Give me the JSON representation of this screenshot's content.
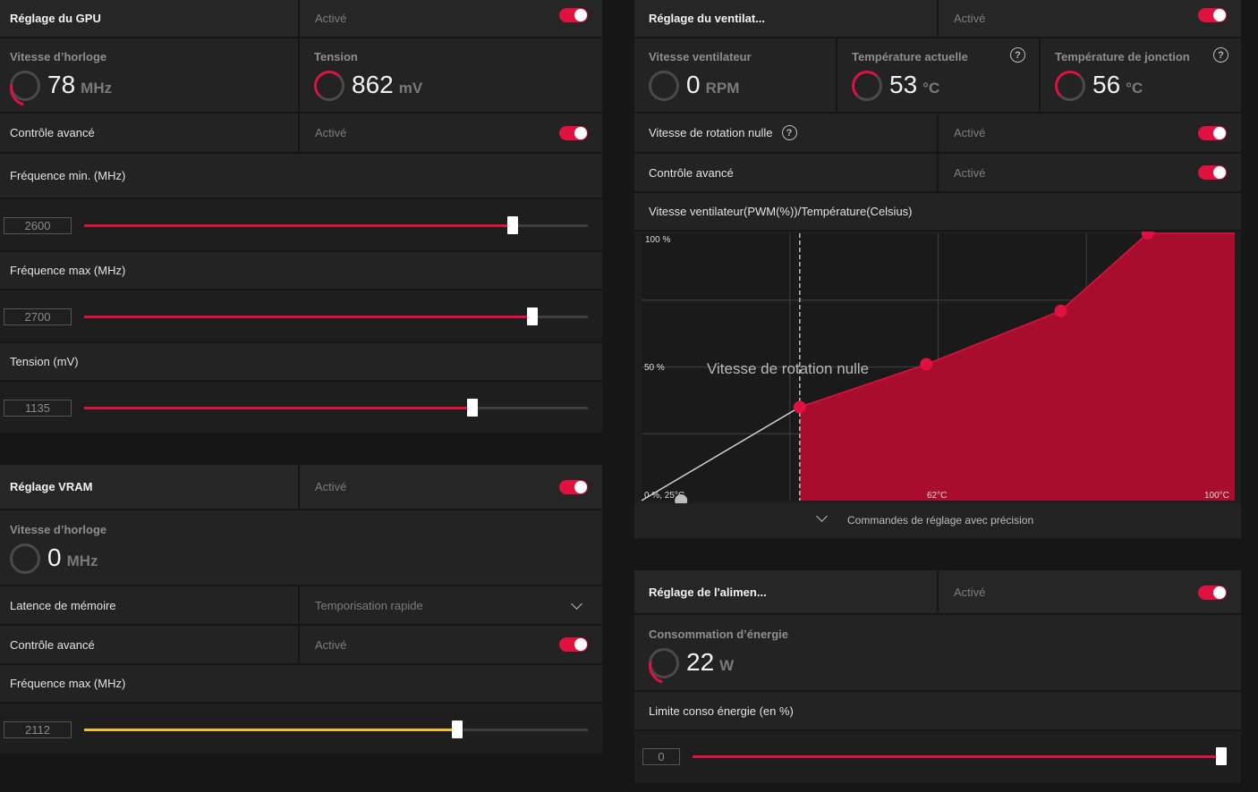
{
  "gpu": {
    "title": "Réglage du GPU",
    "status": "Activé",
    "clock_label": "Vitesse d’horloge",
    "clock_value": "78",
    "clock_unit": "MHz",
    "voltage_label": "Tension",
    "voltage_value": "862",
    "voltage_unit": "mV",
    "advanced_label": "Contrôle avancé",
    "advanced_status": "Activé",
    "fmin_label": "Fréquence min. (MHz)",
    "fmin_value": "2600",
    "fmin_fraction": 0.85,
    "fmax_label": "Fréquence max (MHz)",
    "fmax_value": "2700",
    "fmax_fraction": 0.89,
    "volt_label": "Tension (mV)",
    "volt_value": "1135",
    "volt_fraction": 0.77
  },
  "vram": {
    "title": "Réglage VRAM",
    "status": "Activé",
    "clock_label": "Vitesse d’horloge",
    "clock_value": "0",
    "clock_unit": "MHz",
    "latency_label": "Latence de mémoire",
    "latency_value": "Temporisation rapide",
    "advanced_label": "Contrôle avancé",
    "advanced_status": "Activé",
    "fmax_label": "Fréquence max (MHz)",
    "fmax_value": "2112",
    "fmax_fraction": 0.74
  },
  "fan": {
    "title": "Réglage du ventilat...",
    "status": "Activé",
    "speed_label": "Vitesse ventilateur",
    "speed_value": "0",
    "speed_unit": "RPM",
    "temp_label": "Température actuelle",
    "temp_value": "53",
    "temp_unit": "°C",
    "junction_label": "Température de jonction",
    "junction_value": "56",
    "junction_unit": "°C",
    "zero_rpm_label": "Vitesse de rotation nulle",
    "zero_rpm_status": "Activé",
    "advanced_label": "Contrôle avancé",
    "advanced_status": "Activé",
    "curve_label": "Vitesse ventilateur(PWM(%))/Température(Celsius)",
    "fine_tuning_label": "Commandes de réglage avec précision"
  },
  "power": {
    "title": "Réglage de l'alimen...",
    "status": "Activé",
    "consumption_label": "Consommation d’énergie",
    "consumption_value": "22",
    "consumption_unit": "W",
    "limit_label": "Limite conso énergie (en %)",
    "limit_value": "0",
    "limit_fraction": 1.0
  },
  "chart_data": {
    "type": "area",
    "title": "Vitesse ventilateur(PWM(%))/Température(Celsius)",
    "y_top_label": "100 %",
    "y_mid_label": "50 %",
    "origin_label": "0 %, 25°C",
    "x_mid_label": "62°C",
    "x_max_label": "100°C",
    "zero_rpm_overlay": "Vitesse de rotation nulle",
    "xlim": [
      25,
      100
    ],
    "ylim": [
      0,
      100
    ],
    "zero_rpm_threshold": 45,
    "points": [
      {
        "x": 30,
        "y": 0
      },
      {
        "x": 45,
        "y": 35
      },
      {
        "x": 61,
        "y": 51
      },
      {
        "x": 78,
        "y": 71
      },
      {
        "x": 89,
        "y": 100
      }
    ]
  },
  "colors": {
    "accent": "#e0113e",
    "curve_fill": "#a80d2e",
    "vram_slider": "#f0c030"
  }
}
